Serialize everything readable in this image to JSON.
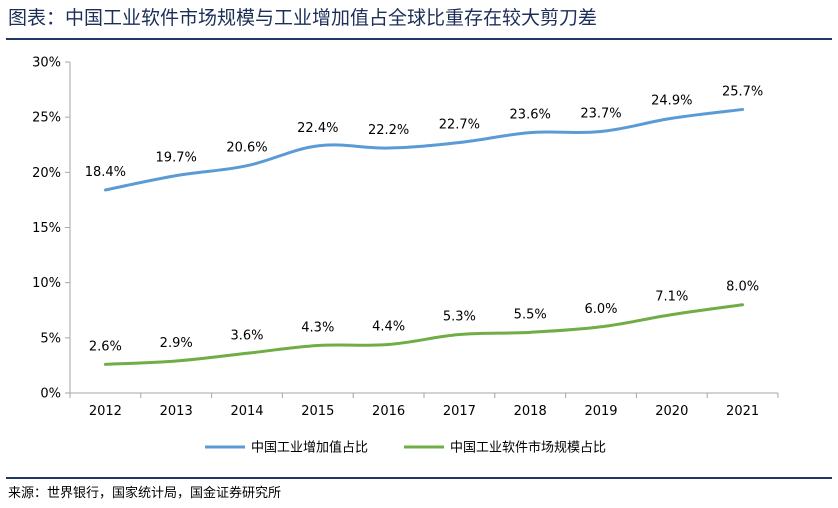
{
  "page": {
    "title": "图表：中国工业软件市场规模与工业增加值占全球比重存在较大剪刀差",
    "source": "来源：世界银行，国家统计局，国金证券研究所"
  },
  "colors": {
    "series_blue": "#5b9bd5",
    "series_green": "#70ad47",
    "title_navy": "#1d2f59",
    "rule_navy": "#1f3864",
    "axis": "#a6a6a6"
  },
  "chart_data": {
    "type": "line",
    "x": [
      "2012",
      "2013",
      "2014",
      "2015",
      "2016",
      "2017",
      "2018",
      "2019",
      "2020",
      "2021"
    ],
    "ylim": [
      0,
      30
    ],
    "yticks": [
      0,
      5,
      10,
      15,
      20,
      25,
      30
    ],
    "ytick_labels": [
      "0%",
      "5%",
      "10%",
      "15%",
      "20%",
      "25%",
      "30%"
    ],
    "grid": false,
    "legend_position": "bottom",
    "series": [
      {
        "name": "中国工业增加值占比",
        "color": "#5b9bd5",
        "values": [
          18.4,
          19.7,
          20.6,
          22.4,
          22.2,
          22.7,
          23.6,
          23.7,
          24.9,
          25.7
        ],
        "labels": [
          "18.4%",
          "19.7%",
          "20.6%",
          "22.4%",
          "22.2%",
          "22.7%",
          "23.6%",
          "23.7%",
          "24.9%",
          "25.7%"
        ]
      },
      {
        "name": "中国工业软件市场规模占比",
        "color": "#70ad47",
        "values": [
          2.6,
          2.9,
          3.6,
          4.3,
          4.4,
          5.3,
          5.5,
          6.0,
          7.1,
          8.0
        ],
        "labels": [
          "2.6%",
          "2.9%",
          "3.6%",
          "4.3%",
          "4.4%",
          "5.3%",
          "5.5%",
          "6.0%",
          "7.1%",
          "8.0%"
        ]
      }
    ]
  }
}
